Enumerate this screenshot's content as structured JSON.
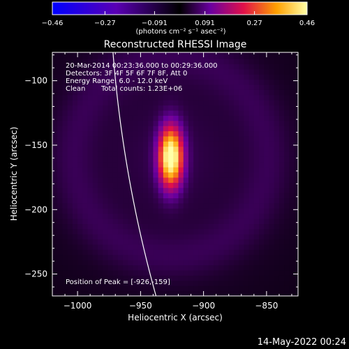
{
  "chart_data": {
    "type": "heatmap",
    "title": "Reconstructed RHESSI Image",
    "xlabel": "Heliocentric X (arcsec)",
    "ylabel": "Heliocentric Y (arcsec)",
    "xlim": [
      -1020,
      -825
    ],
    "ylim": [
      -267,
      -78
    ],
    "x_ticks": [
      -1000,
      -950,
      -900,
      -850
    ],
    "y_ticks": [
      -100,
      -150,
      -200,
      -250
    ],
    "x_tick_labels": [
      "−1000",
      "−950",
      "−900",
      "−850"
    ],
    "y_tick_labels": [
      "−100",
      "−150",
      "−200",
      "−250"
    ],
    "colorbar": {
      "range": [
        -0.46,
        0.46
      ],
      "ticks": [
        -0.46,
        -0.27,
        -0.091,
        0.091,
        0.27,
        0.46
      ],
      "tick_labels": [
        "−0.46",
        "−0.27",
        "−0.091",
        "0.091",
        "0.27",
        "0.46"
      ],
      "unit_label": "(photons cm⁻² s⁻¹ asec⁻²)"
    },
    "source": {
      "center": [
        -926,
        -159
      ],
      "sigma_x": 6.5,
      "sigma_y": 16,
      "peak": 0.46
    },
    "background_level": 0.06,
    "ring_radius": 78,
    "ring_level": 0.03,
    "limb": {
      "center": [
        0,
        0
      ],
      "radius": 975
    },
    "annotations": {
      "time_range": "20-Mar-2014 00:23:36.000 to 00:29:36.000",
      "detectors": "Detectors: 3F 4F 5F 6F 7F 8F, Att 0",
      "energy_range": "Energy Range: 6.0 - 12.0 keV",
      "clean_label": "Clean",
      "total_counts": "Total counts: 1.23E+06",
      "peak_position": "Position of Peak = [-926,-159]"
    },
    "timestamp": "14-May-2022 00:24"
  },
  "colors": {
    "background": "#000000",
    "frame": "#ffffff",
    "limb": "#ffffff",
    "text": "#ffffff"
  }
}
